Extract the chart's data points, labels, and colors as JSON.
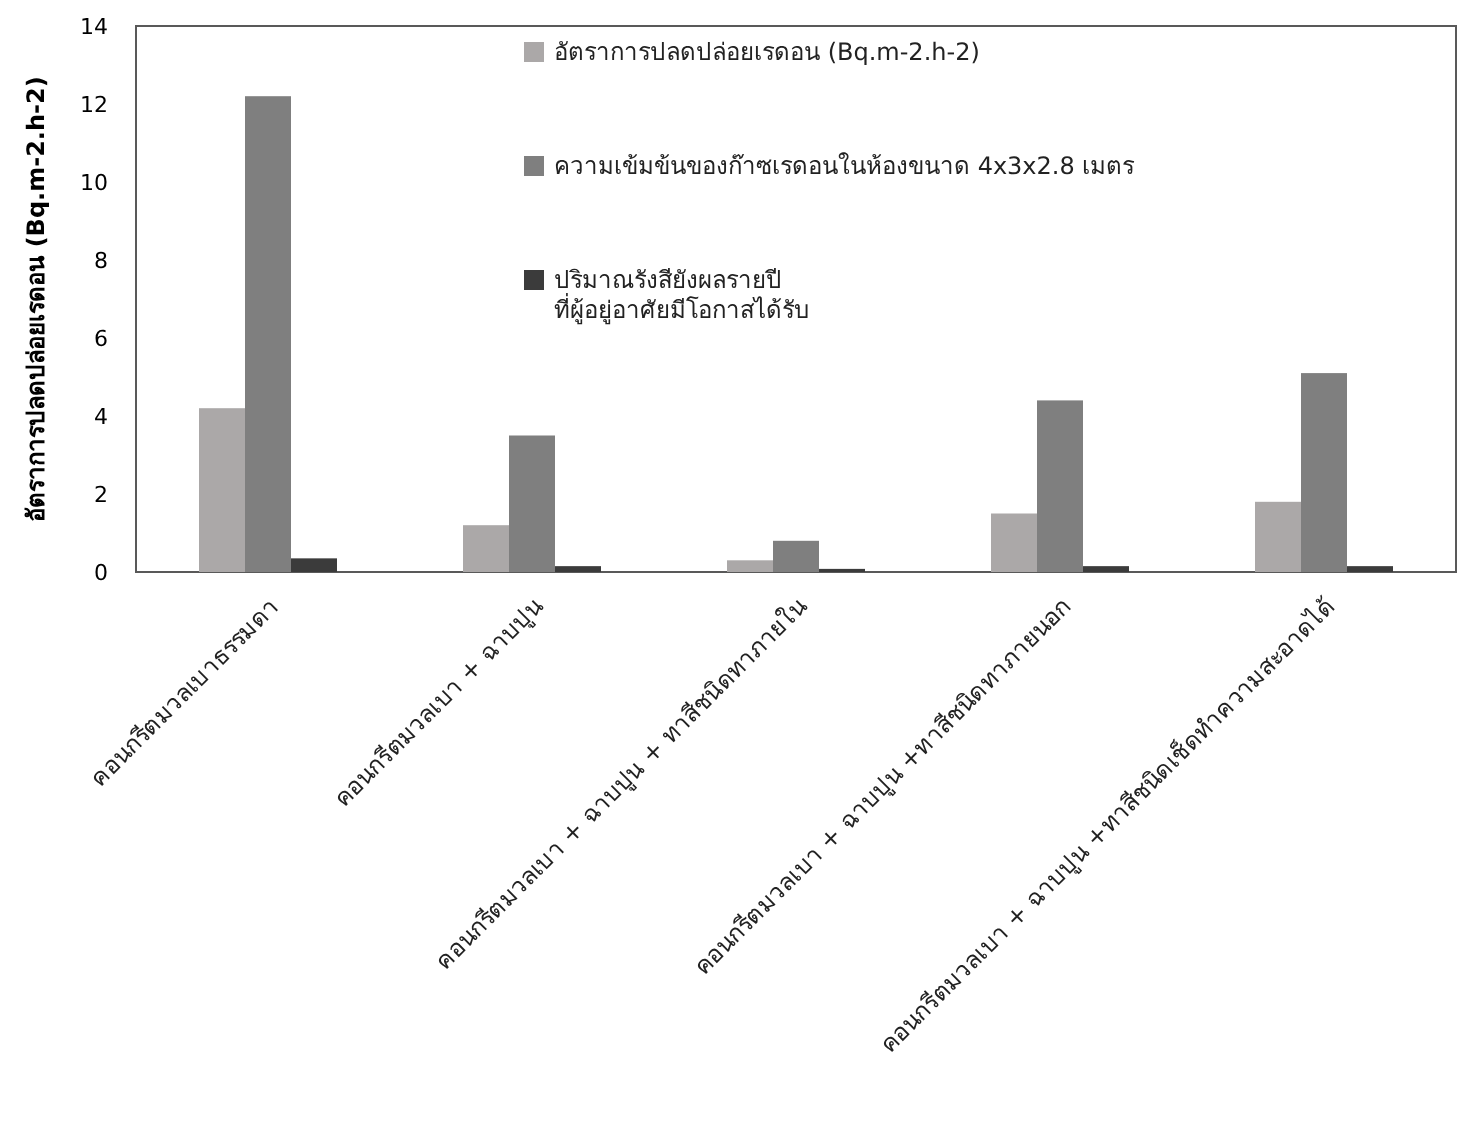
{
  "chart_data": {
    "type": "bar",
    "ylabel": "อัตราการปลดปล่อยเรดอน (Bq.m-2.h-2)",
    "categories": [
      "คอนกรีตมวลเบาธรรมดา",
      "คอนกรีตมวลเบา + ฉาบปูน",
      "คอนกรีตมวลเบา + ฉาบปูน + ทาสีชนิดทาภายใน",
      "คอนกรีตมวลเบา + ฉาบปูน +ทาสีชนิดทาภายนอก",
      "คอนกรีตมวลเบา + ฉาบปูน +ทาสีชนิดเช็ดทำความสะอาดได้"
    ],
    "series": [
      {
        "name": "อัตราการปลดปล่อยเรดอน (Bq.m-2.h-2)",
        "color": "#aba8a8",
        "values": [
          4.2,
          1.2,
          0.3,
          1.5,
          1.8
        ]
      },
      {
        "name": "ความเข้มข้นของก๊าซเรดอนในห้องขนาด 4x3x2.8 เมตร",
        "color": "#7f7f7f",
        "values": [
          12.2,
          3.5,
          0.8,
          4.4,
          5.1
        ]
      },
      {
        "name": "ปริมาณรังสียังผลรายปี\nที่ผู้อยู่อาศัยมีโอกาสได้รับ",
        "color": "#3b3b3b",
        "values": [
          0.35,
          0.15,
          0.08,
          0.15,
          0.15
        ]
      }
    ],
    "ylim": [
      0,
      14
    ],
    "yticks": [
      0,
      2,
      4,
      6,
      8,
      10,
      12,
      14
    ],
    "grid": false,
    "legend": "top"
  }
}
